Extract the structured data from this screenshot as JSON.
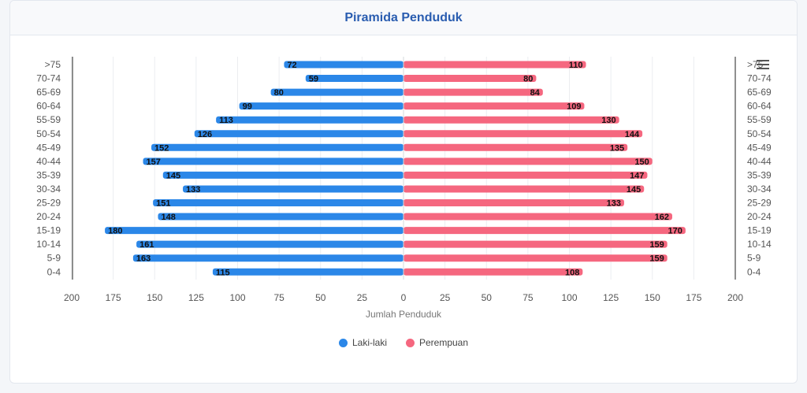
{
  "title": "Piramida Penduduk",
  "chart_data": {
    "type": "bar",
    "orientation": "horizontal-pyramid",
    "categories": [
      ">75",
      "70-74",
      "65-69",
      "60-64",
      "55-59",
      "50-54",
      "45-49",
      "40-44",
      "35-39",
      "30-34",
      "25-29",
      "20-24",
      "15-19",
      "10-14",
      "5-9",
      "0-4"
    ],
    "series": [
      {
        "name": "Laki-laki",
        "color": "#2b87e8",
        "values": [
          72,
          59,
          80,
          99,
          113,
          126,
          152,
          157,
          145,
          133,
          151,
          148,
          180,
          161,
          163,
          115
        ]
      },
      {
        "name": "Perempuan",
        "color": "#f5677f",
        "values": [
          110,
          80,
          84,
          109,
          130,
          144,
          135,
          150,
          147,
          145,
          133,
          162,
          170,
          159,
          159,
          108
        ]
      }
    ],
    "xlabel": "Jumlah Penduduk",
    "xlim": [
      -200,
      200
    ],
    "x_ticks": [
      200,
      175,
      150,
      125,
      100,
      75,
      50,
      25,
      0,
      25,
      50,
      75,
      100,
      125,
      150,
      175,
      200
    ],
    "grid": true,
    "legend_position": "bottom-center"
  }
}
